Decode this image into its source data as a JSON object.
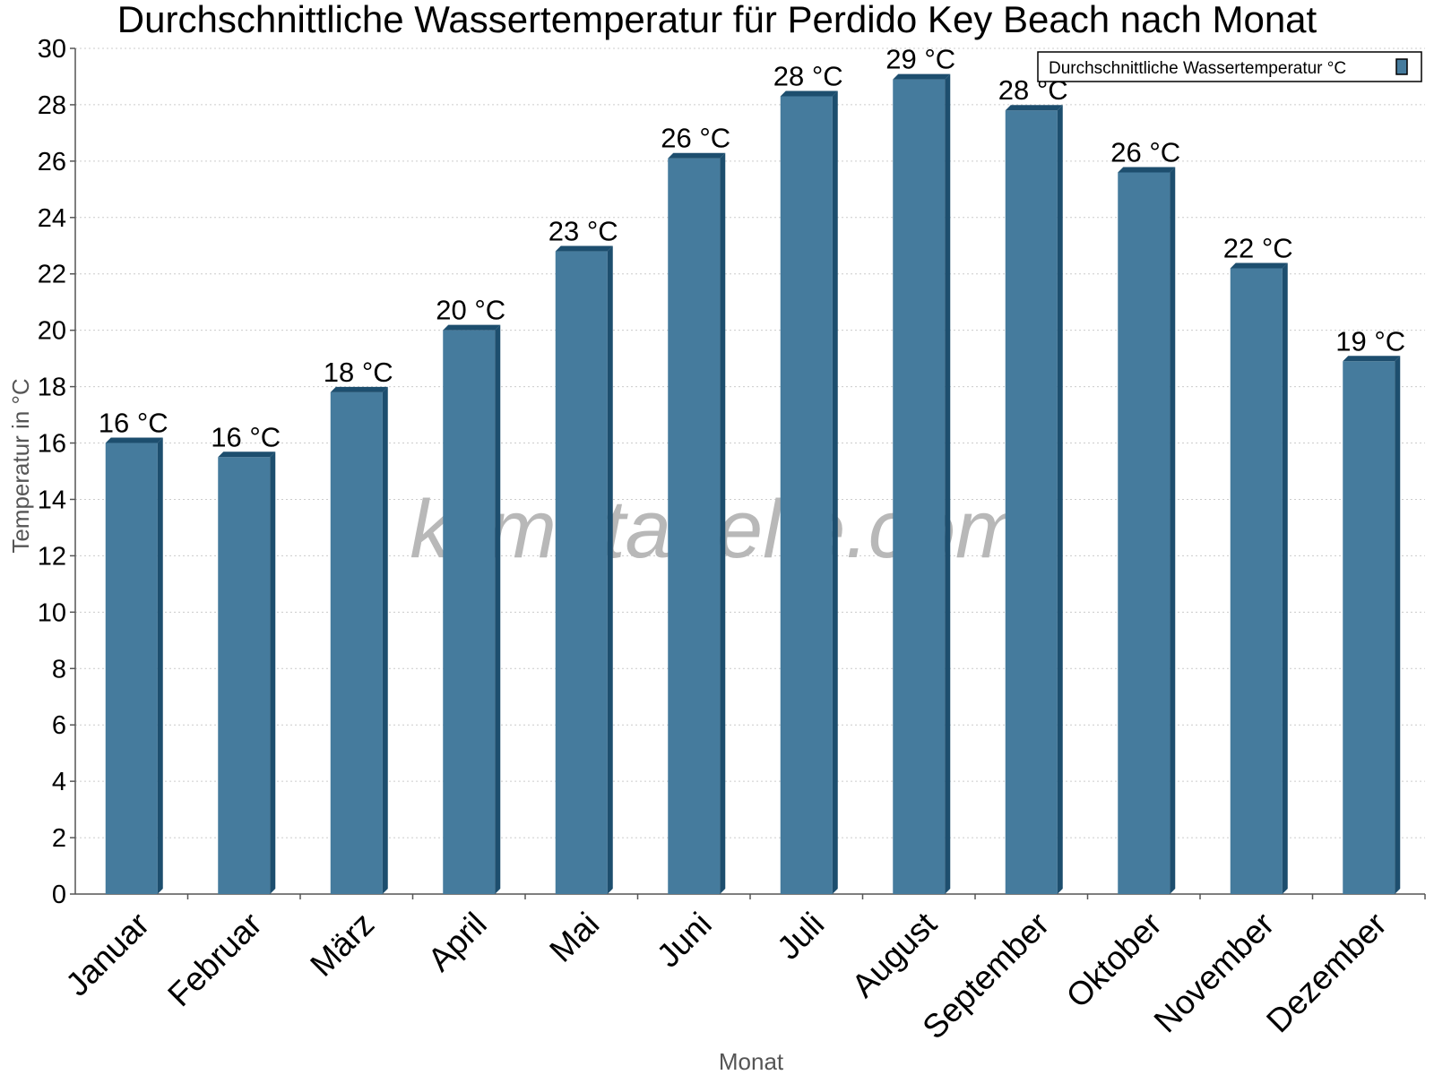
{
  "chart_data": {
    "type": "bar",
    "title": "Durchschnittliche Wassertemperatur für Perdido Key Beach nach Monat",
    "xlabel": "Monat",
    "ylabel": "Temperatur in °C",
    "ylim": [
      0,
      30
    ],
    "yticks": [
      0,
      2,
      4,
      6,
      8,
      10,
      12,
      14,
      16,
      18,
      20,
      22,
      24,
      26,
      28,
      30
    ],
    "grid": true,
    "legend_position": "top-right",
    "categories": [
      "Januar",
      "Februar",
      "März",
      "April",
      "Mai",
      "Juni",
      "Juli",
      "August",
      "September",
      "Oktober",
      "November",
      "Dezember"
    ],
    "series": [
      {
        "name": "Durchschnittliche Wassertemperatur °C",
        "color": "#457b9d",
        "values": [
          16.0,
          15.5,
          17.8,
          20.0,
          22.8,
          26.1,
          28.3,
          28.9,
          27.8,
          25.6,
          22.2,
          18.9
        ],
        "labels": [
          "16 °C",
          "16 °C",
          "18 °C",
          "20 °C",
          "23 °C",
          "26 °C",
          "28 °C",
          "29 °C",
          "28 °C",
          "26 °C",
          "22 °C",
          "19 °C"
        ]
      }
    ]
  },
  "watermark": "klimatabelle.com",
  "colors": {
    "bar_face": "#457b9d",
    "bar_side": "#1d4e6e",
    "grid": "#cccccc",
    "axis": "#555555"
  }
}
